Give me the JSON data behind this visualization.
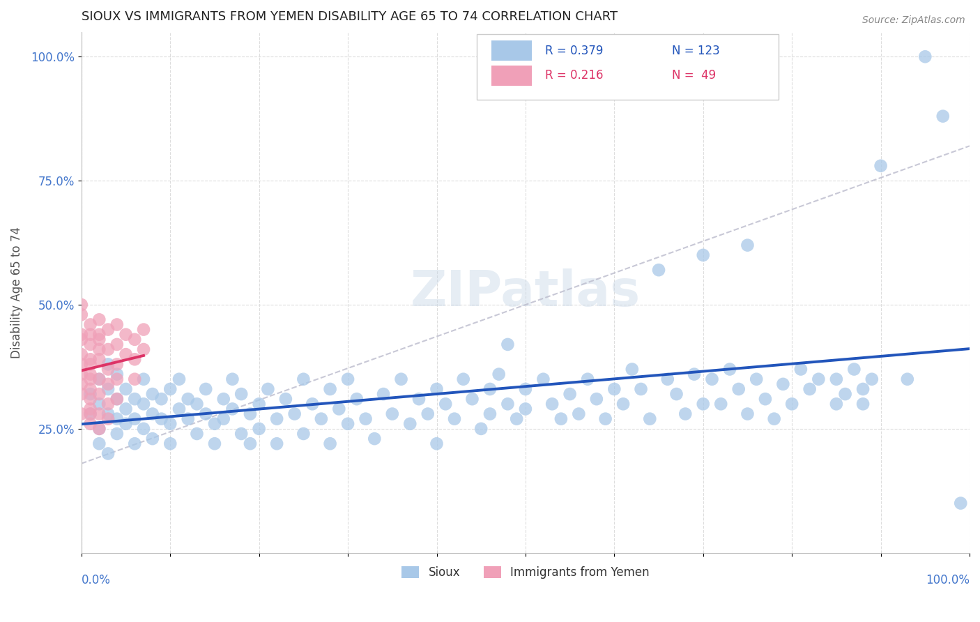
{
  "title": "SIOUX VS IMMIGRANTS FROM YEMEN DISABILITY AGE 65 TO 74 CORRELATION CHART",
  "source": "Source: ZipAtlas.com",
  "ylabel": "Disability Age 65 to 74",
  "watermark": "ZIPatlas",
  "blue_color": "#a8c8e8",
  "pink_color": "#f0a0b8",
  "blue_line_color": "#2255bb",
  "pink_line_color": "#dd3366",
  "bg_color": "#ffffff",
  "grid_color": "#dddddd",
  "title_color": "#222222",
  "axis_label_color": "#555555",
  "tick_label_color": "#4477cc",
  "sioux_points": [
    [
      0.01,
      0.28
    ],
    [
      0.01,
      0.32
    ],
    [
      0.02,
      0.25
    ],
    [
      0.02,
      0.3
    ],
    [
      0.02,
      0.35
    ],
    [
      0.02,
      0.22
    ],
    [
      0.03,
      0.28
    ],
    [
      0.03,
      0.33
    ],
    [
      0.03,
      0.2
    ],
    [
      0.03,
      0.38
    ],
    [
      0.04,
      0.27
    ],
    [
      0.04,
      0.31
    ],
    [
      0.04,
      0.24
    ],
    [
      0.04,
      0.36
    ],
    [
      0.05,
      0.29
    ],
    [
      0.05,
      0.26
    ],
    [
      0.05,
      0.33
    ],
    [
      0.06,
      0.27
    ],
    [
      0.06,
      0.31
    ],
    [
      0.06,
      0.22
    ],
    [
      0.07,
      0.3
    ],
    [
      0.07,
      0.25
    ],
    [
      0.07,
      0.35
    ],
    [
      0.08,
      0.28
    ],
    [
      0.08,
      0.23
    ],
    [
      0.08,
      0.32
    ],
    [
      0.09,
      0.27
    ],
    [
      0.09,
      0.31
    ],
    [
      0.1,
      0.26
    ],
    [
      0.1,
      0.33
    ],
    [
      0.1,
      0.22
    ],
    [
      0.11,
      0.29
    ],
    [
      0.11,
      0.35
    ],
    [
      0.12,
      0.27
    ],
    [
      0.12,
      0.31
    ],
    [
      0.13,
      0.24
    ],
    [
      0.13,
      0.3
    ],
    [
      0.14,
      0.28
    ],
    [
      0.14,
      0.33
    ],
    [
      0.15,
      0.26
    ],
    [
      0.15,
      0.22
    ],
    [
      0.16,
      0.31
    ],
    [
      0.16,
      0.27
    ],
    [
      0.17,
      0.35
    ],
    [
      0.17,
      0.29
    ],
    [
      0.18,
      0.24
    ],
    [
      0.18,
      0.32
    ],
    [
      0.19,
      0.28
    ],
    [
      0.19,
      0.22
    ],
    [
      0.2,
      0.3
    ],
    [
      0.2,
      0.25
    ],
    [
      0.21,
      0.33
    ],
    [
      0.22,
      0.27
    ],
    [
      0.22,
      0.22
    ],
    [
      0.23,
      0.31
    ],
    [
      0.24,
      0.28
    ],
    [
      0.25,
      0.35
    ],
    [
      0.25,
      0.24
    ],
    [
      0.26,
      0.3
    ],
    [
      0.27,
      0.27
    ],
    [
      0.28,
      0.33
    ],
    [
      0.28,
      0.22
    ],
    [
      0.29,
      0.29
    ],
    [
      0.3,
      0.26
    ],
    [
      0.3,
      0.35
    ],
    [
      0.31,
      0.31
    ],
    [
      0.32,
      0.27
    ],
    [
      0.33,
      0.23
    ],
    [
      0.34,
      0.32
    ],
    [
      0.35,
      0.28
    ],
    [
      0.36,
      0.35
    ],
    [
      0.37,
      0.26
    ],
    [
      0.38,
      0.31
    ],
    [
      0.39,
      0.28
    ],
    [
      0.4,
      0.33
    ],
    [
      0.4,
      0.22
    ],
    [
      0.41,
      0.3
    ],
    [
      0.42,
      0.27
    ],
    [
      0.43,
      0.35
    ],
    [
      0.44,
      0.31
    ],
    [
      0.45,
      0.25
    ],
    [
      0.46,
      0.33
    ],
    [
      0.46,
      0.28
    ],
    [
      0.47,
      0.36
    ],
    [
      0.48,
      0.3
    ],
    [
      0.48,
      0.42
    ],
    [
      0.49,
      0.27
    ],
    [
      0.5,
      0.33
    ],
    [
      0.5,
      0.29
    ],
    [
      0.52,
      0.35
    ],
    [
      0.53,
      0.3
    ],
    [
      0.54,
      0.27
    ],
    [
      0.55,
      0.32
    ],
    [
      0.56,
      0.28
    ],
    [
      0.57,
      0.35
    ],
    [
      0.58,
      0.31
    ],
    [
      0.59,
      0.27
    ],
    [
      0.6,
      0.33
    ],
    [
      0.61,
      0.3
    ],
    [
      0.62,
      0.37
    ],
    [
      0.63,
      0.33
    ],
    [
      0.64,
      0.27
    ],
    [
      0.65,
      0.57
    ],
    [
      0.66,
      0.35
    ],
    [
      0.67,
      0.32
    ],
    [
      0.68,
      0.28
    ],
    [
      0.69,
      0.36
    ],
    [
      0.7,
      0.3
    ],
    [
      0.7,
      0.6
    ],
    [
      0.71,
      0.35
    ],
    [
      0.72,
      0.3
    ],
    [
      0.73,
      0.37
    ],
    [
      0.74,
      0.33
    ],
    [
      0.75,
      0.28
    ],
    [
      0.75,
      0.62
    ],
    [
      0.76,
      0.35
    ],
    [
      0.77,
      0.31
    ],
    [
      0.78,
      0.27
    ],
    [
      0.79,
      0.34
    ],
    [
      0.8,
      0.3
    ],
    [
      0.81,
      0.37
    ],
    [
      0.82,
      0.33
    ],
    [
      0.83,
      0.35
    ],
    [
      0.85,
      0.3
    ],
    [
      0.85,
      0.35
    ],
    [
      0.86,
      0.32
    ],
    [
      0.87,
      0.37
    ],
    [
      0.88,
      0.3
    ],
    [
      0.88,
      0.33
    ],
    [
      0.89,
      0.35
    ],
    [
      0.9,
      0.78
    ],
    [
      0.93,
      0.35
    ],
    [
      0.95,
      1.0
    ],
    [
      0.97,
      0.88
    ],
    [
      0.99,
      0.1
    ]
  ],
  "yemen_points": [
    [
      0.0,
      0.48
    ],
    [
      0.0,
      0.43
    ],
    [
      0.0,
      0.4
    ],
    [
      0.0,
      0.36
    ],
    [
      0.0,
      0.32
    ],
    [
      0.0,
      0.28
    ],
    [
      0.0,
      0.44
    ],
    [
      0.0,
      0.38
    ],
    [
      0.0,
      0.34
    ],
    [
      0.0,
      0.5
    ],
    [
      0.01,
      0.46
    ],
    [
      0.01,
      0.42
    ],
    [
      0.01,
      0.38
    ],
    [
      0.01,
      0.35
    ],
    [
      0.01,
      0.31
    ],
    [
      0.01,
      0.28
    ],
    [
      0.01,
      0.44
    ],
    [
      0.01,
      0.39
    ],
    [
      0.01,
      0.36
    ],
    [
      0.01,
      0.33
    ],
    [
      0.01,
      0.29
    ],
    [
      0.01,
      0.26
    ],
    [
      0.02,
      0.47
    ],
    [
      0.02,
      0.43
    ],
    [
      0.02,
      0.39
    ],
    [
      0.02,
      0.35
    ],
    [
      0.02,
      0.32
    ],
    [
      0.02,
      0.28
    ],
    [
      0.02,
      0.25
    ],
    [
      0.02,
      0.44
    ],
    [
      0.02,
      0.41
    ],
    [
      0.03,
      0.45
    ],
    [
      0.03,
      0.41
    ],
    [
      0.03,
      0.37
    ],
    [
      0.03,
      0.34
    ],
    [
      0.03,
      0.3
    ],
    [
      0.03,
      0.27
    ],
    [
      0.04,
      0.46
    ],
    [
      0.04,
      0.42
    ],
    [
      0.04,
      0.38
    ],
    [
      0.04,
      0.35
    ],
    [
      0.04,
      0.31
    ],
    [
      0.05,
      0.44
    ],
    [
      0.05,
      0.4
    ],
    [
      0.06,
      0.43
    ],
    [
      0.06,
      0.39
    ],
    [
      0.06,
      0.35
    ],
    [
      0.07,
      0.45
    ],
    [
      0.07,
      0.41
    ]
  ],
  "xlim": [
    0.0,
    1.0
  ],
  "ylim": [
    0.0,
    1.05
  ],
  "yticks": [
    0.25,
    0.5,
    0.75,
    1.0
  ],
  "ytick_labels": [
    "25.0%",
    "50.0%",
    "75.0%",
    "100.0%"
  ]
}
